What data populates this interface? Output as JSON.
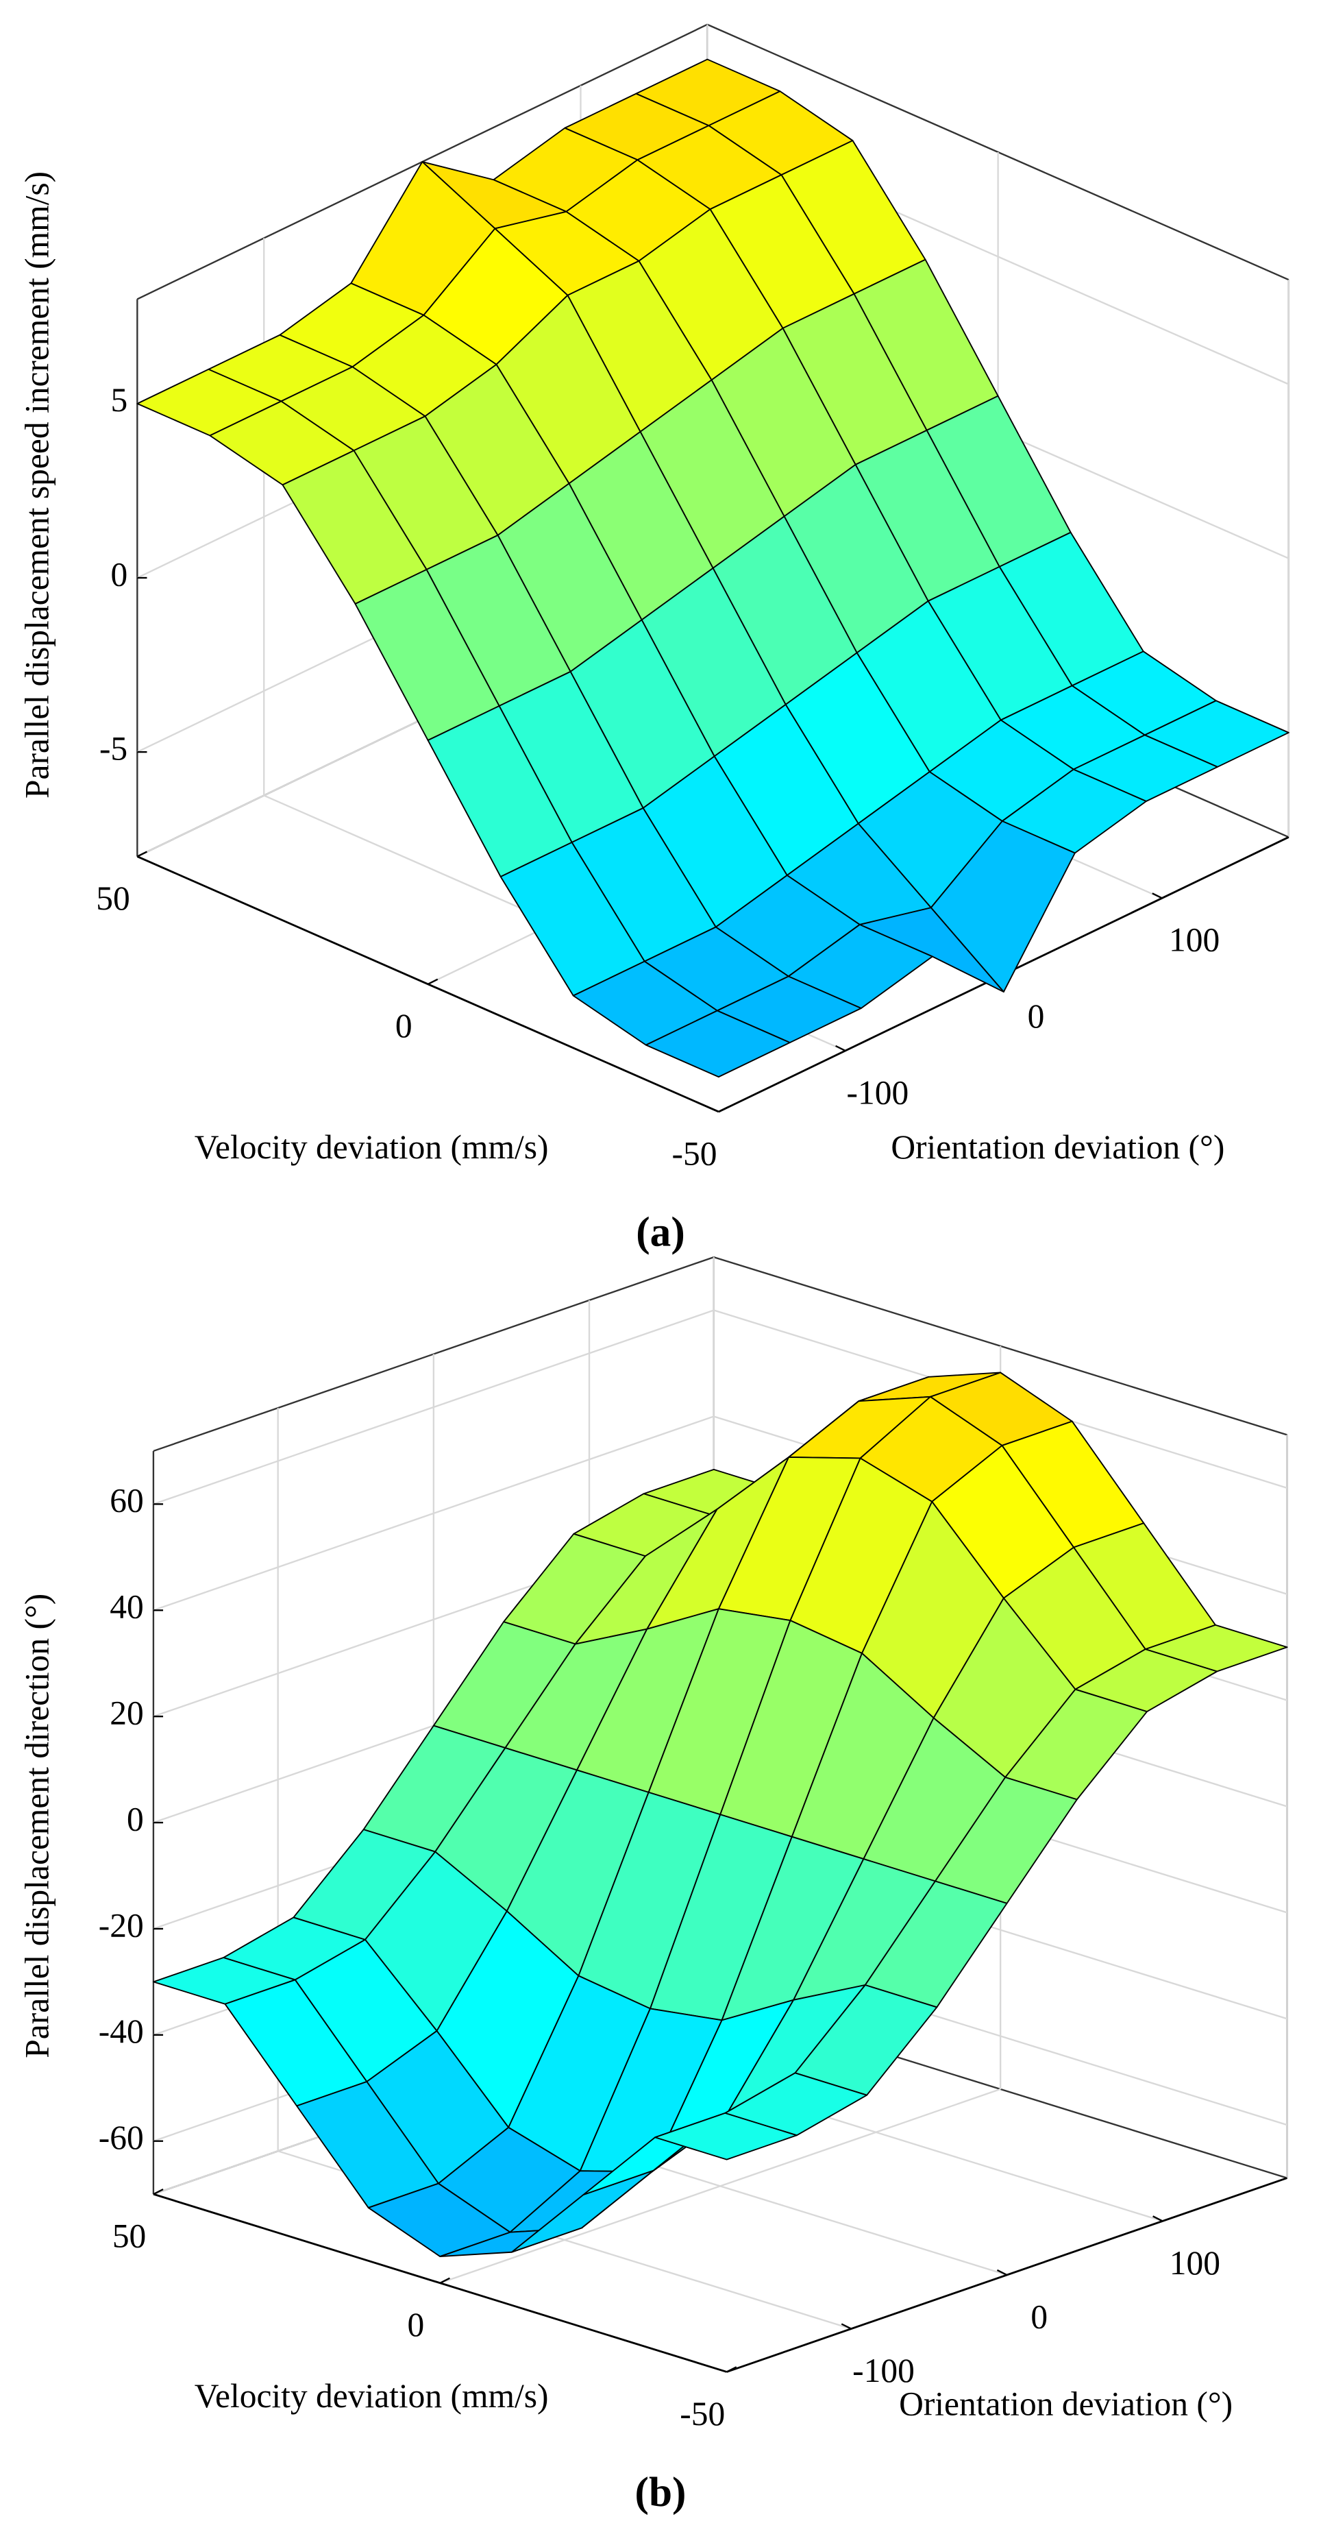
{
  "chart_data": [
    {
      "type": "surface",
      "caption": "(a)",
      "colormap": "jet",
      "xlabel": "Velocity deviation (mm/s)",
      "ylabel": "Orientation deviation (°)",
      "zlabel": "Parallel displacement speed increment (mm/s)",
      "x": [
        -50,
        -37.5,
        -25,
        -12.5,
        0,
        12.5,
        25,
        37.5,
        50
      ],
      "y": [
        -180,
        -135,
        -90,
        -45,
        0,
        45,
        90,
        135,
        180
      ],
      "z": [
        [
          -7,
          -7,
          -7,
          -6.5,
          -8.5,
          -5.5,
          -5,
          -5,
          -5
        ],
        [
          -7,
          -7,
          -7,
          -6.5,
          -7,
          -5.5,
          -5,
          -5,
          -5
        ],
        [
          -6.5,
          -6.5,
          -6.5,
          -6,
          -5.5,
          -5,
          -4.5,
          -4.5,
          -4.5
        ],
        [
          -4,
          -4,
          -4,
          -3.5,
          -3,
          -2.5,
          -2,
          -2,
          -2
        ],
        [
          -1,
          -1,
          -1,
          -0.5,
          0,
          0.5,
          1,
          1,
          1
        ],
        [
          2,
          2,
          2,
          2.5,
          3,
          3.5,
          4,
          4,
          4
        ],
        [
          4.5,
          4.5,
          4.5,
          5,
          6,
          6,
          6.5,
          6.5,
          6.5
        ],
        [
          5,
          5,
          5,
          5.5,
          7,
          6.5,
          7,
          7,
          7
        ],
        [
          5,
          5,
          5,
          5.5,
          8,
          6.5,
          7,
          7,
          7
        ]
      ],
      "xlim": [
        -50,
        50
      ],
      "ylim": [
        -180,
        180
      ],
      "zlim": [
        -8,
        8
      ],
      "xticks": [
        -50,
        0,
        50
      ],
      "yticks": [
        -100,
        0,
        100
      ],
      "zticks": [
        -5,
        0,
        5
      ],
      "grid": true
    },
    {
      "type": "surface",
      "caption": "(b)",
      "colormap": "jet",
      "xlabel": "Velocity deviation (mm/s)",
      "ylabel": "Orientation deviation (°)",
      "zlabel": "Parallel displacement direction (°)",
      "x": [
        -50,
        -37.5,
        -25,
        -12.5,
        0,
        12.5,
        25,
        37.5,
        50
      ],
      "y": [
        -180,
        -135,
        -90,
        -45,
        0,
        45,
        90,
        135,
        180
      ],
      "z": [
        [
          -30,
          -30,
          -27,
          -15,
          0,
          15,
          27,
          30,
          30
        ],
        [
          -30,
          -30,
          -27,
          -15,
          0,
          15,
          27,
          30,
          30
        ],
        [
          -45,
          -45,
          -40,
          -22,
          0,
          22,
          40,
          45,
          45
        ],
        [
          -60,
          -60,
          -54,
          -30,
          0,
          30,
          54,
          60,
          60
        ],
        [
          -65,
          -65,
          -58,
          -32,
          0,
          32,
          58,
          65,
          65
        ],
        [
          -60,
          -60,
          -54,
          -30,
          0,
          30,
          54,
          60,
          60
        ],
        [
          -45,
          -45,
          -40,
          -22,
          0,
          22,
          40,
          45,
          45
        ],
        [
          -30,
          -30,
          -27,
          -15,
          0,
          15,
          27,
          30,
          30
        ],
        [
          -30,
          -30,
          -27,
          -15,
          0,
          15,
          27,
          30,
          30
        ]
      ],
      "xlim": [
        -50,
        50
      ],
      "ylim": [
        -180,
        180
      ],
      "zlim": [
        -70,
        70
      ],
      "xticks": [
        -50,
        0,
        50
      ],
      "yticks": [
        -100,
        0,
        100
      ],
      "zticks": [
        -60,
        -40,
        -20,
        0,
        20,
        40,
        60
      ],
      "grid": true
    }
  ]
}
